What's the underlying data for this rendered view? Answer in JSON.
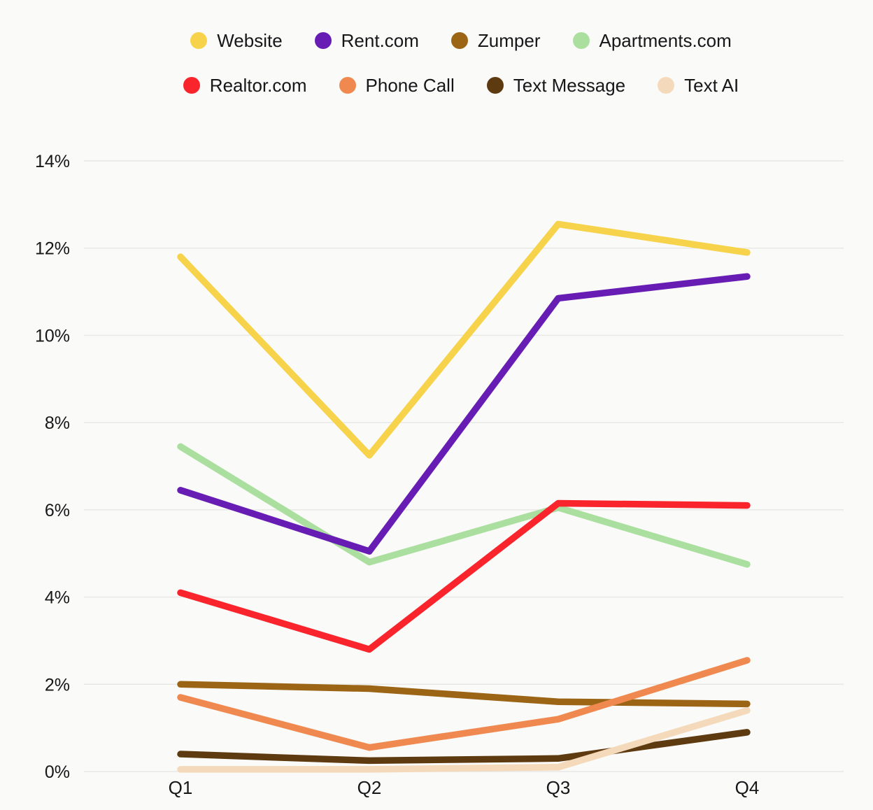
{
  "page": {
    "background": "#FAFAF8",
    "text_color": "#17171A",
    "grid_color": "#E8E8E5"
  },
  "chart_data": {
    "type": "line",
    "title": "",
    "xlabel": "",
    "ylabel": "",
    "categories": [
      "Q1",
      "Q2",
      "Q3",
      "Q4"
    ],
    "series": [
      {
        "name": "Website",
        "color": "#F7D34B",
        "values": [
          11.8,
          7.25,
          12.55,
          11.9
        ]
      },
      {
        "name": "Rent.com",
        "color": "#671DB4",
        "values": [
          6.45,
          5.05,
          10.85,
          11.35
        ]
      },
      {
        "name": "Zumper",
        "color": "#9C6415",
        "values": [
          2.0,
          1.9,
          1.6,
          1.55
        ]
      },
      {
        "name": "Apartments.com",
        "color": "#ABDF9F",
        "values": [
          7.45,
          4.8,
          6.05,
          4.75
        ]
      },
      {
        "name": "Realtor.com",
        "color": "#F9242C",
        "values": [
          4.1,
          2.8,
          6.15,
          6.1
        ]
      },
      {
        "name": "Phone Call",
        "color": "#F08950",
        "values": [
          1.7,
          0.55,
          1.2,
          2.55
        ]
      },
      {
        "name": "Text Message",
        "color": "#5E3A11",
        "values": [
          0.4,
          0.25,
          0.3,
          0.9
        ]
      },
      {
        "name": "Text AI",
        "color": "#F4DABB",
        "values": [
          0.05,
          0.05,
          0.1,
          1.4
        ]
      }
    ],
    "ylim": [
      0,
      14
    ],
    "yticks": [
      0,
      2,
      4,
      6,
      8,
      10,
      12,
      14
    ],
    "ytick_labels": [
      "0%",
      "2%",
      "4%",
      "6%",
      "8%",
      "10%",
      "12%",
      "14%"
    ],
    "grid": "horizontal",
    "legend_position": "top",
    "legend_rows": [
      [
        "Website",
        "Rent.com",
        "Zumper",
        "Apartments.com"
      ],
      [
        "Realtor.com",
        "Phone Call",
        "Text Message",
        "Text AI"
      ]
    ],
    "draw_order": [
      "Apartments.com",
      "Zumper",
      "Text Message",
      "Website",
      "Phone Call",
      "Text AI",
      "Realtor.com",
      "Rent.com"
    ],
    "line_width": 9.5
  }
}
